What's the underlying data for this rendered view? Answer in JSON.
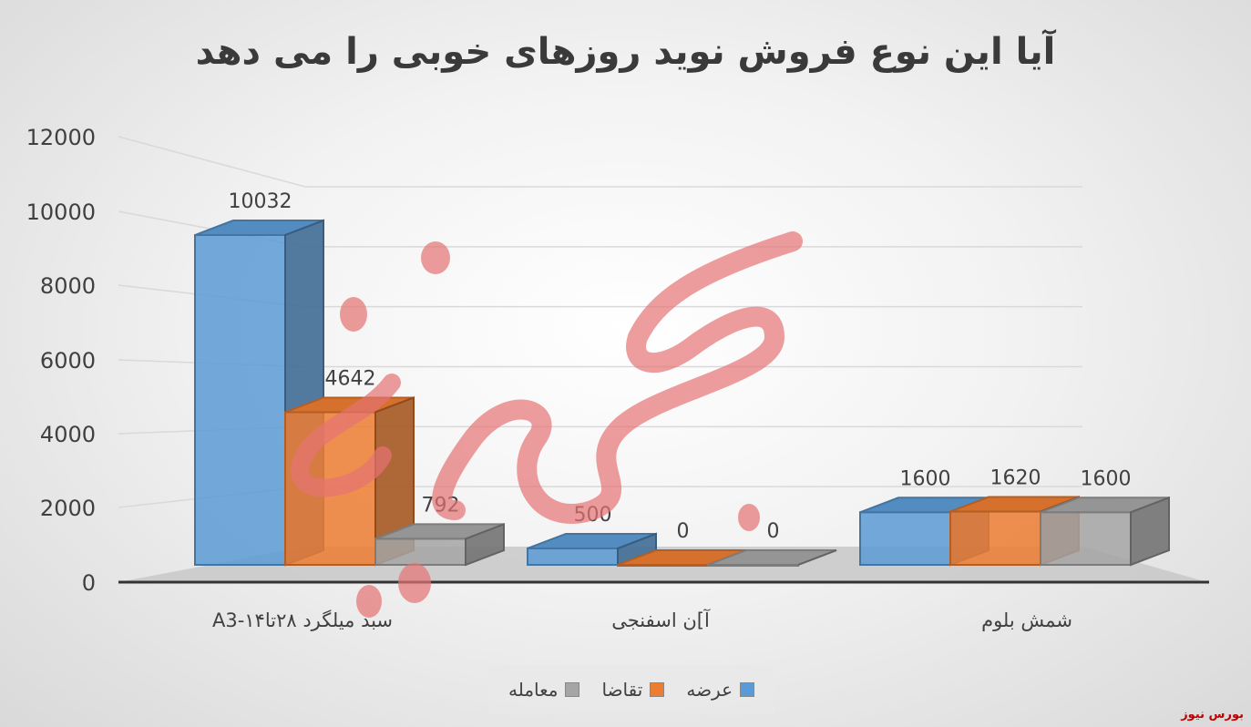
{
  "chart_data": {
    "type": "bar",
    "style": "3d-clustered-column",
    "title": "آیا این  نوع فروش نوید روزهای خوبی را می دهد",
    "categories": [
      "سبد میلگرد ۲۸تا۱۴-A3",
      "آ]ن اسفنجی",
      "شمش بلوم"
    ],
    "series": [
      {
        "name": "عرضه",
        "values": [
          10032,
          500,
          1600
        ],
        "color": "#5b9bd5"
      },
      {
        "name": "تقاضا",
        "values": [
          4642,
          0,
          1620
        ],
        "color": "#ed7d31"
      },
      {
        "name": "معامله",
        "values": [
          792,
          0,
          1600
        ],
        "color": "#a5a5a5"
      }
    ],
    "ylim": [
      0,
      12000
    ],
    "yticks": [
      "0",
      "2000",
      "4000",
      "6000",
      "8000",
      "10000",
      "12000"
    ],
    "data_labels": true,
    "grid": true,
    "legend_position": "bottom"
  },
  "watermark": {
    "text": "بورس نیوز",
    "color": "#e57373"
  },
  "brand": {
    "text": "بورس نیوز"
  }
}
